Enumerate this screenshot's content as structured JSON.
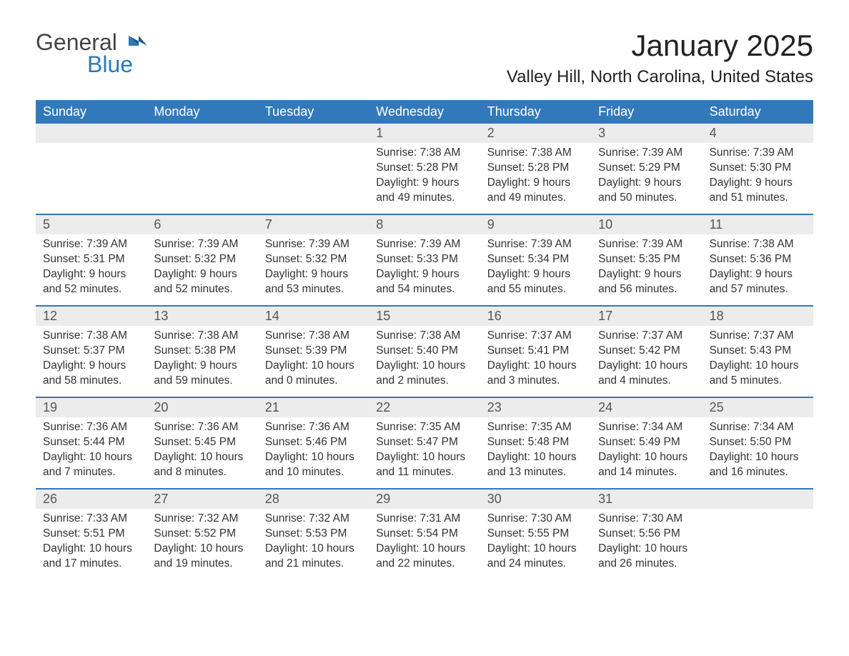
{
  "brand": {
    "text1": "General",
    "text2": "Blue"
  },
  "title": "January 2025",
  "location": "Valley Hill, North Carolina, United States",
  "colors": {
    "header_bg": "#3279bb",
    "header_text": "#ffffff",
    "daynum_bg": "#ececec",
    "body_text": "#333333",
    "accent": "#2a7ab8",
    "page_bg": "#ffffff"
  },
  "fonts": {
    "title_size_pt": 32,
    "location_size_pt": 18,
    "header_size_pt": 14,
    "body_size_pt": 12
  },
  "day_names": [
    "Sunday",
    "Monday",
    "Tuesday",
    "Wednesday",
    "Thursday",
    "Friday",
    "Saturday"
  ],
  "weeks": [
    [
      null,
      null,
      null,
      {
        "n": "1",
        "sr": "Sunrise: 7:38 AM",
        "ss": "Sunset: 5:28 PM",
        "dl1": "Daylight: 9 hours",
        "dl2": "and 49 minutes."
      },
      {
        "n": "2",
        "sr": "Sunrise: 7:38 AM",
        "ss": "Sunset: 5:28 PM",
        "dl1": "Daylight: 9 hours",
        "dl2": "and 49 minutes."
      },
      {
        "n": "3",
        "sr": "Sunrise: 7:39 AM",
        "ss": "Sunset: 5:29 PM",
        "dl1": "Daylight: 9 hours",
        "dl2": "and 50 minutes."
      },
      {
        "n": "4",
        "sr": "Sunrise: 7:39 AM",
        "ss": "Sunset: 5:30 PM",
        "dl1": "Daylight: 9 hours",
        "dl2": "and 51 minutes."
      }
    ],
    [
      {
        "n": "5",
        "sr": "Sunrise: 7:39 AM",
        "ss": "Sunset: 5:31 PM",
        "dl1": "Daylight: 9 hours",
        "dl2": "and 52 minutes."
      },
      {
        "n": "6",
        "sr": "Sunrise: 7:39 AM",
        "ss": "Sunset: 5:32 PM",
        "dl1": "Daylight: 9 hours",
        "dl2": "and 52 minutes."
      },
      {
        "n": "7",
        "sr": "Sunrise: 7:39 AM",
        "ss": "Sunset: 5:32 PM",
        "dl1": "Daylight: 9 hours",
        "dl2": "and 53 minutes."
      },
      {
        "n": "8",
        "sr": "Sunrise: 7:39 AM",
        "ss": "Sunset: 5:33 PM",
        "dl1": "Daylight: 9 hours",
        "dl2": "and 54 minutes."
      },
      {
        "n": "9",
        "sr": "Sunrise: 7:39 AM",
        "ss": "Sunset: 5:34 PM",
        "dl1": "Daylight: 9 hours",
        "dl2": "and 55 minutes."
      },
      {
        "n": "10",
        "sr": "Sunrise: 7:39 AM",
        "ss": "Sunset: 5:35 PM",
        "dl1": "Daylight: 9 hours",
        "dl2": "and 56 minutes."
      },
      {
        "n": "11",
        "sr": "Sunrise: 7:38 AM",
        "ss": "Sunset: 5:36 PM",
        "dl1": "Daylight: 9 hours",
        "dl2": "and 57 minutes."
      }
    ],
    [
      {
        "n": "12",
        "sr": "Sunrise: 7:38 AM",
        "ss": "Sunset: 5:37 PM",
        "dl1": "Daylight: 9 hours",
        "dl2": "and 58 minutes."
      },
      {
        "n": "13",
        "sr": "Sunrise: 7:38 AM",
        "ss": "Sunset: 5:38 PM",
        "dl1": "Daylight: 9 hours",
        "dl2": "and 59 minutes."
      },
      {
        "n": "14",
        "sr": "Sunrise: 7:38 AM",
        "ss": "Sunset: 5:39 PM",
        "dl1": "Daylight: 10 hours",
        "dl2": "and 0 minutes."
      },
      {
        "n": "15",
        "sr": "Sunrise: 7:38 AM",
        "ss": "Sunset: 5:40 PM",
        "dl1": "Daylight: 10 hours",
        "dl2": "and 2 minutes."
      },
      {
        "n": "16",
        "sr": "Sunrise: 7:37 AM",
        "ss": "Sunset: 5:41 PM",
        "dl1": "Daylight: 10 hours",
        "dl2": "and 3 minutes."
      },
      {
        "n": "17",
        "sr": "Sunrise: 7:37 AM",
        "ss": "Sunset: 5:42 PM",
        "dl1": "Daylight: 10 hours",
        "dl2": "and 4 minutes."
      },
      {
        "n": "18",
        "sr": "Sunrise: 7:37 AM",
        "ss": "Sunset: 5:43 PM",
        "dl1": "Daylight: 10 hours",
        "dl2": "and 5 minutes."
      }
    ],
    [
      {
        "n": "19",
        "sr": "Sunrise: 7:36 AM",
        "ss": "Sunset: 5:44 PM",
        "dl1": "Daylight: 10 hours",
        "dl2": "and 7 minutes."
      },
      {
        "n": "20",
        "sr": "Sunrise: 7:36 AM",
        "ss": "Sunset: 5:45 PM",
        "dl1": "Daylight: 10 hours",
        "dl2": "and 8 minutes."
      },
      {
        "n": "21",
        "sr": "Sunrise: 7:36 AM",
        "ss": "Sunset: 5:46 PM",
        "dl1": "Daylight: 10 hours",
        "dl2": "and 10 minutes."
      },
      {
        "n": "22",
        "sr": "Sunrise: 7:35 AM",
        "ss": "Sunset: 5:47 PM",
        "dl1": "Daylight: 10 hours",
        "dl2": "and 11 minutes."
      },
      {
        "n": "23",
        "sr": "Sunrise: 7:35 AM",
        "ss": "Sunset: 5:48 PM",
        "dl1": "Daylight: 10 hours",
        "dl2": "and 13 minutes."
      },
      {
        "n": "24",
        "sr": "Sunrise: 7:34 AM",
        "ss": "Sunset: 5:49 PM",
        "dl1": "Daylight: 10 hours",
        "dl2": "and 14 minutes."
      },
      {
        "n": "25",
        "sr": "Sunrise: 7:34 AM",
        "ss": "Sunset: 5:50 PM",
        "dl1": "Daylight: 10 hours",
        "dl2": "and 16 minutes."
      }
    ],
    [
      {
        "n": "26",
        "sr": "Sunrise: 7:33 AM",
        "ss": "Sunset: 5:51 PM",
        "dl1": "Daylight: 10 hours",
        "dl2": "and 17 minutes."
      },
      {
        "n": "27",
        "sr": "Sunrise: 7:32 AM",
        "ss": "Sunset: 5:52 PM",
        "dl1": "Daylight: 10 hours",
        "dl2": "and 19 minutes."
      },
      {
        "n": "28",
        "sr": "Sunrise: 7:32 AM",
        "ss": "Sunset: 5:53 PM",
        "dl1": "Daylight: 10 hours",
        "dl2": "and 21 minutes."
      },
      {
        "n": "29",
        "sr": "Sunrise: 7:31 AM",
        "ss": "Sunset: 5:54 PM",
        "dl1": "Daylight: 10 hours",
        "dl2": "and 22 minutes."
      },
      {
        "n": "30",
        "sr": "Sunrise: 7:30 AM",
        "ss": "Sunset: 5:55 PM",
        "dl1": "Daylight: 10 hours",
        "dl2": "and 24 minutes."
      },
      {
        "n": "31",
        "sr": "Sunrise: 7:30 AM",
        "ss": "Sunset: 5:56 PM",
        "dl1": "Daylight: 10 hours",
        "dl2": "and 26 minutes."
      },
      null
    ]
  ]
}
